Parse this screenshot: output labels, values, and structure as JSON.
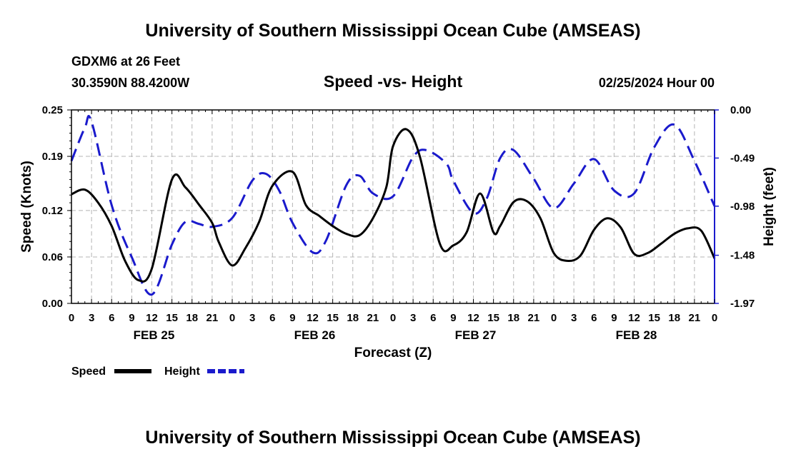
{
  "page": {
    "title_top": "University of Southern Mississippi Ocean Cube (AMSEAS)",
    "title_bottom": "University of Southern Mississippi Ocean Cube (AMSEAS)",
    "station": "GDXM6 at 26 Feet",
    "coords": "30.3590N  88.4200W",
    "subtitle": "Speed -vs- Height",
    "datetime": "02/25/2024 Hour 00"
  },
  "colors": {
    "speed": "#000000",
    "height": "#1a1acc",
    "grid": "#b4b4b4"
  },
  "chart_data": {
    "type": "line",
    "title": "Speed -vs- Height",
    "xlabel": "Forecast (Z)",
    "ylabel": "Speed (Knots)",
    "y2label": "Height (feet)",
    "grid": true,
    "xlim": [
      0,
      96
    ],
    "ylim": [
      0,
      0.25
    ],
    "y2lim": [
      -1.97,
      0
    ],
    "x_ticks": [
      0,
      3,
      6,
      9,
      12,
      15,
      18,
      21,
      24,
      27,
      30,
      33,
      36,
      39,
      42,
      45,
      48,
      51,
      54,
      57,
      60,
      63,
      66,
      69,
      72,
      75,
      78,
      81,
      84,
      87,
      90,
      93,
      96
    ],
    "x_tick_labels": [
      "0",
      "3",
      "6",
      "9",
      "12",
      "15",
      "18",
      "21",
      "0",
      "3",
      "6",
      "9",
      "12",
      "15",
      "18",
      "21",
      "0",
      "3",
      "6",
      "9",
      "12",
      "15",
      "18",
      "21",
      "0",
      "3",
      "6",
      "9",
      "12",
      "15",
      "18",
      "21",
      "0"
    ],
    "day_labels": [
      {
        "x": 12,
        "label": "FEB 25"
      },
      {
        "x": 36,
        "label": "FEB 26"
      },
      {
        "x": 60,
        "label": "FEB 27"
      },
      {
        "x": 84,
        "label": "FEB 28"
      }
    ],
    "y_ticks": [
      0.25,
      0.19,
      0.12,
      0.06,
      0.0
    ],
    "y_tick_labels": [
      "0.25",
      "0.19",
      "0.12",
      "0.06",
      "0.00"
    ],
    "y2_ticks": [
      0.0,
      -0.49,
      -0.98,
      -1.48,
      -1.97
    ],
    "y2_tick_labels": [
      "0.00",
      "-0.49",
      "-0.98",
      "-1.48",
      "-1.97"
    ],
    "series": [
      {
        "name": "Speed",
        "axis": "left",
        "x": [
          0,
          2,
          4,
          6,
          8,
          10,
          12,
          15,
          17,
          19,
          21,
          22,
          24,
          26,
          28,
          30,
          33,
          35,
          37,
          39,
          41,
          43,
          45,
          47,
          48,
          50,
          52,
          55,
          57,
          59,
          61,
          63,
          64,
          66,
          68,
          70,
          72,
          74,
          76,
          78,
          80,
          82,
          84,
          86,
          88,
          90,
          92,
          94,
          96
        ],
        "values": [
          0.141,
          0.147,
          0.13,
          0.1,
          0.055,
          0.03,
          0.045,
          0.16,
          0.15,
          0.128,
          0.104,
          0.079,
          0.049,
          0.072,
          0.105,
          0.152,
          0.17,
          0.127,
          0.113,
          0.1,
          0.09,
          0.088,
          0.11,
          0.15,
          0.203,
          0.225,
          0.19,
          0.077,
          0.075,
          0.092,
          0.142,
          0.092,
          0.1,
          0.131,
          0.132,
          0.11,
          0.065,
          0.055,
          0.062,
          0.095,
          0.11,
          0.098,
          0.064,
          0.065,
          0.077,
          0.09,
          0.097,
          0.094,
          0.058
        ]
      },
      {
        "name": "Height",
        "axis": "right",
        "x": [
          0,
          2,
          3,
          6,
          9,
          12,
          15,
          17,
          19,
          21,
          24,
          27,
          29,
          31,
          33,
          36,
          38,
          41,
          43,
          45,
          48,
          51,
          53,
          56,
          57,
          60,
          62,
          64,
          66,
          69,
          72,
          75,
          78,
          81,
          84,
          87,
          90,
          93,
          96
        ],
        "values": [
          -0.52,
          -0.18,
          -0.12,
          -0.97,
          -1.5,
          -1.88,
          -1.37,
          -1.14,
          -1.16,
          -1.19,
          -1.1,
          -0.72,
          -0.65,
          -0.82,
          -1.15,
          -1.45,
          -1.33,
          -0.77,
          -0.67,
          -0.85,
          -0.88,
          -0.48,
          -0.41,
          -0.55,
          -0.72,
          -1.05,
          -0.9,
          -0.49,
          -0.41,
          -0.7,
          -1.0,
          -0.75,
          -0.5,
          -0.82,
          -0.85,
          -0.38,
          -0.15,
          -0.52,
          -0.98
        ]
      }
    ]
  }
}
